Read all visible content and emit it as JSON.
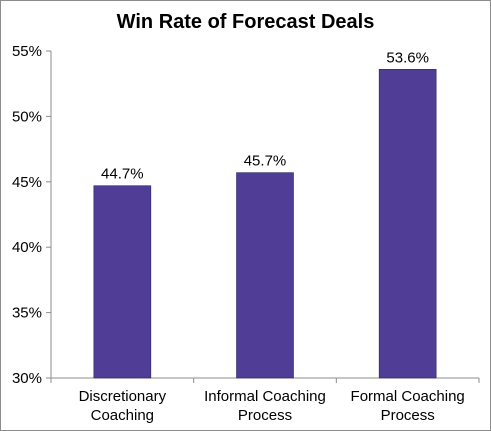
{
  "chart_data": {
    "type": "bar",
    "title": "Win Rate of Forecast Deals",
    "categories": [
      [
        "Discretionary",
        "Coaching"
      ],
      [
        "Informal Coaching",
        "Process"
      ],
      [
        "Formal Coaching",
        "Process"
      ]
    ],
    "values": [
      44.7,
      45.7,
      53.6
    ],
    "data_labels": [
      "44.7%",
      "45.7%",
      "53.6%"
    ],
    "ylim": [
      30,
      55
    ],
    "yticks": [
      30,
      35,
      40,
      45,
      50,
      55
    ],
    "ytick_labels": [
      "30%",
      "35%",
      "40%",
      "45%",
      "50%",
      "55%"
    ],
    "xlabel": "",
    "ylabel": "",
    "bar_color": "#4f3d96",
    "grid": false,
    "legend": false
  }
}
